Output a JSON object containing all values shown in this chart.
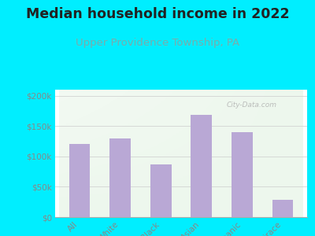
{
  "title": "Median household income in 2022",
  "subtitle": "Upper Providence Township, PA",
  "categories": [
    "All",
    "White",
    "Black",
    "Asian",
    "Hispanic",
    "Multirace"
  ],
  "values": [
    120000,
    130000,
    87000,
    168000,
    140000,
    28000
  ],
  "bar_color": "#b9a8d5",
  "background_outer": "#00eeff",
  "title_color": "#222222",
  "subtitle_color": "#7aacac",
  "tick_color": "#888888",
  "ylim": [
    0,
    210000
  ],
  "yticks": [
    0,
    50000,
    100000,
    150000,
    200000
  ],
  "ytick_labels": [
    "$0",
    "$50k",
    "$100k",
    "$150k",
    "$200k"
  ],
  "watermark": "City-Data.com",
  "title_fontsize": 12.5,
  "subtitle_fontsize": 9.5
}
